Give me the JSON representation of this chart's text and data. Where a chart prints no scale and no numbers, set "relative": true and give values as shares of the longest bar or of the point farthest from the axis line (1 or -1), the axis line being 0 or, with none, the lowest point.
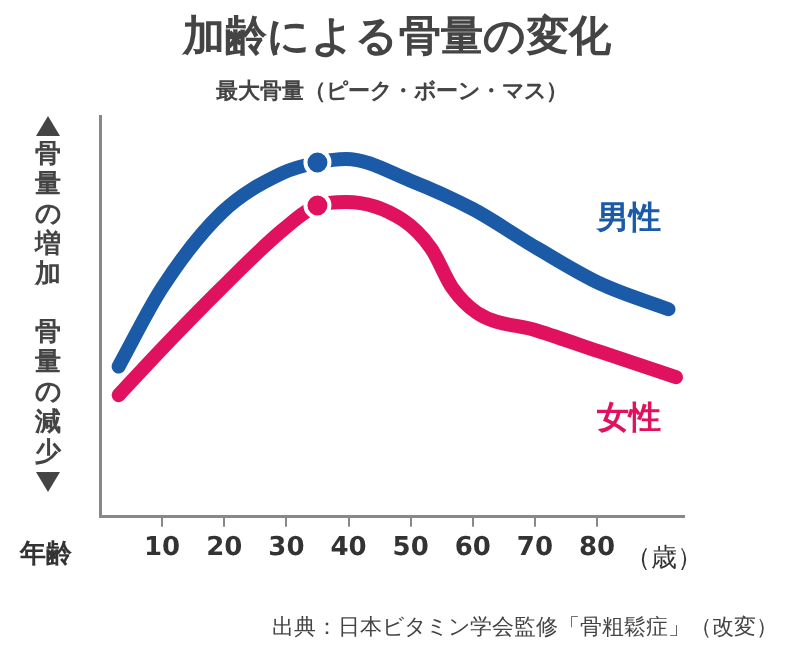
{
  "chart_data": {
    "type": "line",
    "title": "加齢による骨量の変化",
    "xlabel": "年齢",
    "ylabel": "骨量の増加",
    "relative": true,
    "xlim": [
      0,
      94
    ],
    "xticks": [
      10,
      20,
      30,
      40,
      50,
      60,
      70,
      80
    ],
    "series": [
      {
        "name": "男性",
        "color": "#1a5aa6",
        "x": [
          3,
          10,
          19.6,
          29.3,
          35,
          39.6,
          49.9,
          60,
          70.4,
          80.7,
          91.5
        ],
        "values": [
          0.42,
          0.64,
          0.85,
          0.96,
          0.99,
          1,
          0.94,
          0.86,
          0.75,
          0.65,
          0.58
        ]
      },
      {
        "name": "女性",
        "color": "#e0115f",
        "x": [
          3,
          10,
          19.6,
          29.3,
          35,
          39.6,
          48.7,
          53.3,
          56.7,
          60.7,
          70.4,
          80.7,
          92.7
        ],
        "values": [
          0.34,
          0.47,
          0.64,
          0.8,
          0.87,
          0.88,
          0.83,
          0.75,
          0.64,
          0.57,
          0.52,
          0.46,
          0.39
        ]
      },
      {
        "type": "scatter",
        "marker": "circle",
        "colors": [
          "#1a5aa6",
          "#e0115f"
        ],
        "x": [
          35,
          35
        ],
        "values": [
          0.99,
          0.87
        ]
      }
    ],
    "annotations": [
      "最大骨量（ピーク・ボーン・マス）",
      "（歳）",
      "骨量の減少",
      "出典：日本ビタミン学会監修「骨粗鬆症」（改変）"
    ],
    "legend": false
  }
}
